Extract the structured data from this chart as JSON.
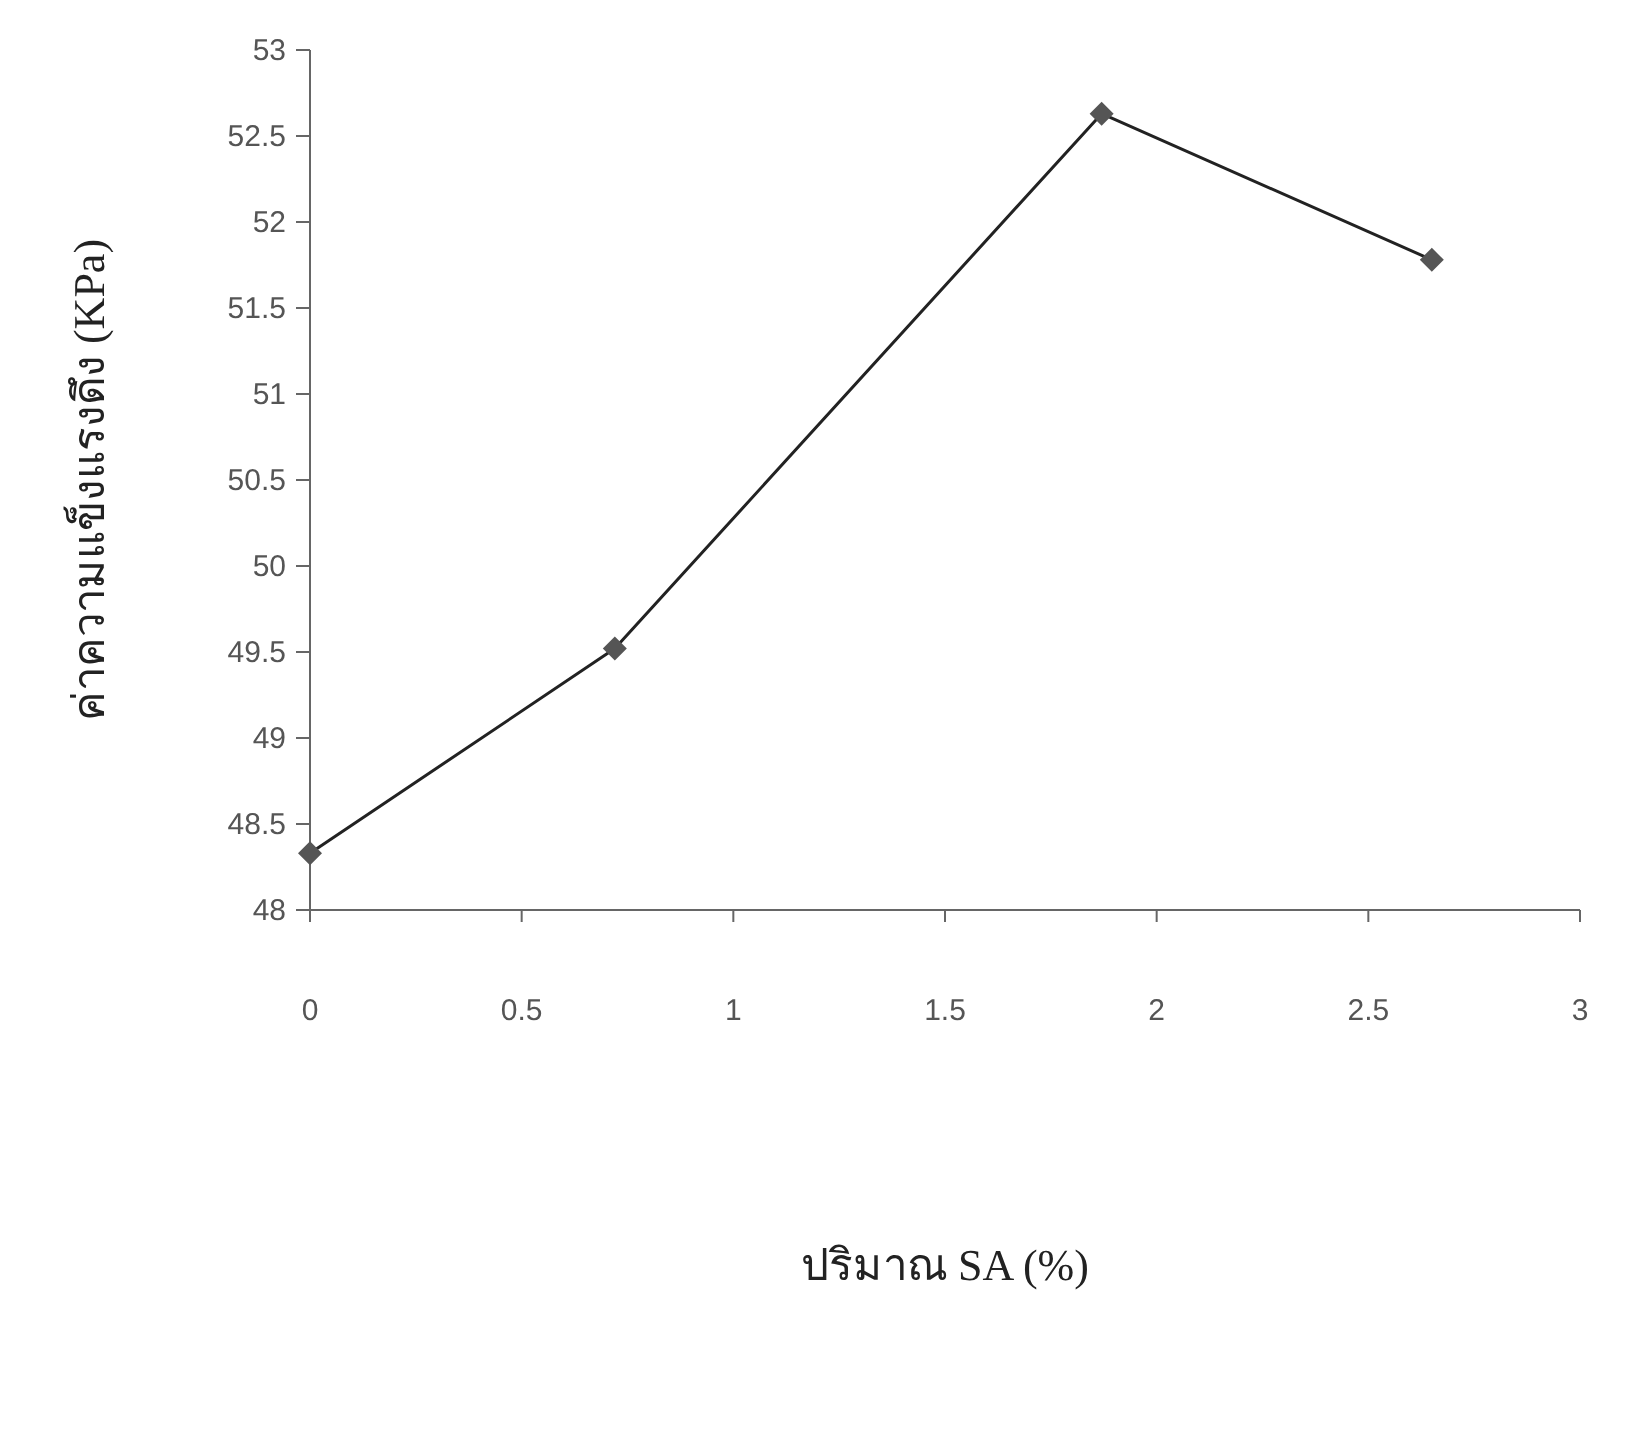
{
  "chart_data": {
    "type": "line",
    "xlabel": "ปริมาณ SA (%)",
    "ylabel": "ค่าความแข็งแรงดึง (KPa)",
    "x": [
      0,
      0.72,
      1.87,
      2.65
    ],
    "series": [
      {
        "color": "#555555",
        "values": [
          48.33,
          49.52,
          52.63,
          51.78
        ]
      }
    ],
    "xlim": [
      0,
      3
    ],
    "ylim": [
      48,
      53
    ],
    "xticks": [
      0,
      0.5,
      1,
      1.5,
      2,
      2.5,
      3
    ],
    "yticks": [
      48,
      48.5,
      49,
      49.5,
      50,
      50.5,
      51,
      51.5,
      52,
      52.5,
      53
    ],
    "marker": "diamond",
    "line_style": "solid"
  }
}
